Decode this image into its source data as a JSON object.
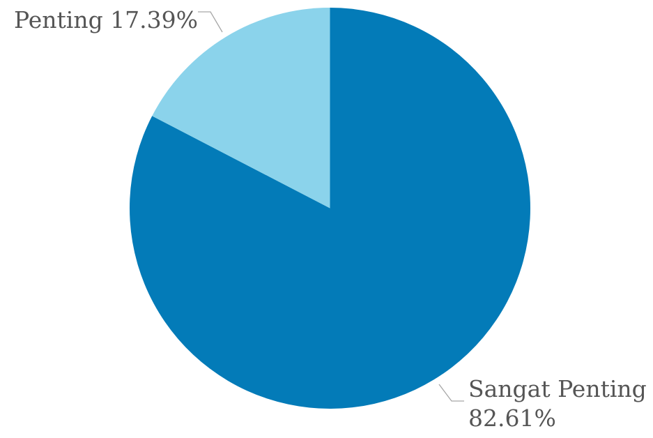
{
  "chart_data": {
    "type": "pie",
    "slices": [
      {
        "label": "Sangat Penting",
        "percent_label": "82.61%",
        "value": 82.61,
        "color": "#037bb8"
      },
      {
        "label": "Penting",
        "percent_label": "17.39%",
        "value": 17.39,
        "color": "#8bd3eb"
      }
    ],
    "data_labels": [
      {
        "lines": [
          "Penting 17.39%"
        ]
      },
      {
        "lines": [
          "Sangat Penting",
          "82.61%"
        ]
      }
    ],
    "legend": "none"
  }
}
